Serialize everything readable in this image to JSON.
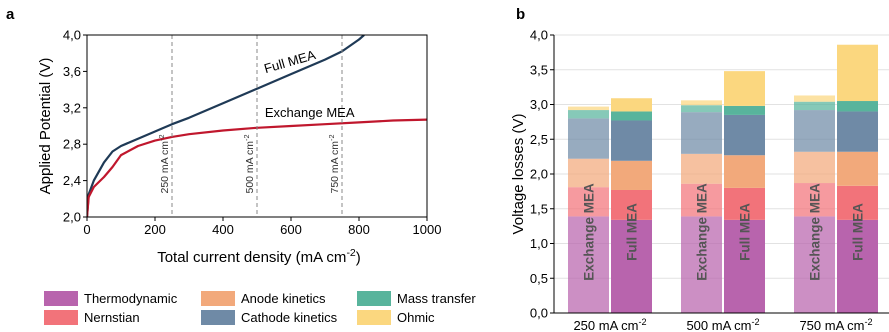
{
  "panel_a": {
    "label": "a"
  },
  "panel_b": {
    "label": "b"
  },
  "chart_data": [
    {
      "type": "line",
      "panel": "a",
      "xlabel": "Total current density (mA cm",
      "xlabel_sup": "-2",
      "xlabel_tail": ")",
      "ylabel": "Applied Potential (V)",
      "xlim": [
        0,
        1000
      ],
      "ylim": [
        2.0,
        4.0
      ],
      "xticks": [
        0,
        200,
        400,
        600,
        800,
        1000
      ],
      "xtick_labels": [
        "0",
        "200",
        "400",
        "600",
        "800",
        "1000"
      ],
      "yticks": [
        2.0,
        2.4,
        2.8,
        3.2,
        3.6,
        4.0
      ],
      "ytick_labels": [
        "2,0",
        "2,4",
        "2,8",
        "3,2",
        "3,6",
        "4,0"
      ],
      "grid": false,
      "series": [
        {
          "name": "Full MEA",
          "color": "#1f3a56",
          "x": [
            0,
            5,
            20,
            50,
            75,
            100,
            150,
            200,
            250,
            300,
            400,
            500,
            600,
            700,
            750,
            800,
            815
          ],
          "y": [
            2.0,
            2.25,
            2.4,
            2.6,
            2.72,
            2.78,
            2.86,
            2.94,
            3.02,
            3.09,
            3.25,
            3.41,
            3.57,
            3.73,
            3.82,
            3.95,
            4.0
          ]
        },
        {
          "name": "Exchange MEA",
          "color": "#c0172d",
          "x": [
            0,
            5,
            20,
            50,
            75,
            100,
            150,
            200,
            250,
            300,
            400,
            500,
            600,
            700,
            800,
            900,
            1000
          ],
          "y": [
            2.0,
            2.22,
            2.33,
            2.44,
            2.55,
            2.68,
            2.78,
            2.84,
            2.88,
            2.91,
            2.95,
            2.98,
            3.0,
            3.02,
            3.04,
            3.06,
            3.07
          ]
        }
      ],
      "vlines": [
        {
          "x": 250,
          "label": "250 mA cm",
          "sup": "-2"
        },
        {
          "x": 500,
          "label": "500 mA cm",
          "sup": "-2"
        },
        {
          "x": 750,
          "label": "750 mA cm",
          "sup": "-2"
        }
      ]
    },
    {
      "type": "bar",
      "panel": "b",
      "stacked": true,
      "ylabel": "Voltage losses (V)",
      "ylim": [
        0,
        4.0
      ],
      "yticks": [
        0,
        0.5,
        1.0,
        1.5,
        2.0,
        2.5,
        3.0,
        3.5,
        4.0
      ],
      "ytick_labels": [
        "0,0",
        "0,5",
        "1,0",
        "1,5",
        "2,0",
        "2,5",
        "3,0",
        "3,5",
        "4,0"
      ],
      "grid": true,
      "groups": [
        {
          "label": "250 mA cm",
          "sup": "-2"
        },
        {
          "label": "500 mA cm",
          "sup": "-2"
        },
        {
          "label": "750 mA cm",
          "sup": "-2"
        }
      ],
      "bar_names": [
        "Exchange MEA",
        "Full MEA"
      ],
      "components": [
        {
          "name": "Thermodynamic",
          "color": "#b864ad"
        },
        {
          "name": "Nernstian",
          "color": "#f2737a"
        },
        {
          "name": "Anode kinetics",
          "color": "#f2a97b"
        },
        {
          "name": "Cathode kinetics",
          "color": "#6f8aa6"
        },
        {
          "name": "Mass transfer",
          "color": "#58b49c"
        },
        {
          "name": "Ohmic",
          "color": "#fbd77f"
        }
      ],
      "bars": [
        {
          "group": 0,
          "bar": "Exchange MEA",
          "values": [
            1.39,
            0.42,
            0.41,
            0.58,
            0.12,
            0.05
          ]
        },
        {
          "group": 0,
          "bar": "Full MEA",
          "values": [
            1.34,
            0.43,
            0.42,
            0.58,
            0.13,
            0.19
          ]
        },
        {
          "group": 1,
          "bar": "Exchange MEA",
          "values": [
            1.39,
            0.47,
            0.43,
            0.6,
            0.1,
            0.07
          ]
        },
        {
          "group": 1,
          "bar": "Full MEA",
          "values": [
            1.34,
            0.46,
            0.47,
            0.58,
            0.13,
            0.5
          ]
        },
        {
          "group": 2,
          "bar": "Exchange MEA",
          "values": [
            1.39,
            0.48,
            0.45,
            0.6,
            0.12,
            0.09
          ]
        },
        {
          "group": 2,
          "bar": "Full MEA",
          "values": [
            1.34,
            0.49,
            0.49,
            0.58,
            0.15,
            0.81
          ]
        }
      ]
    }
  ]
}
